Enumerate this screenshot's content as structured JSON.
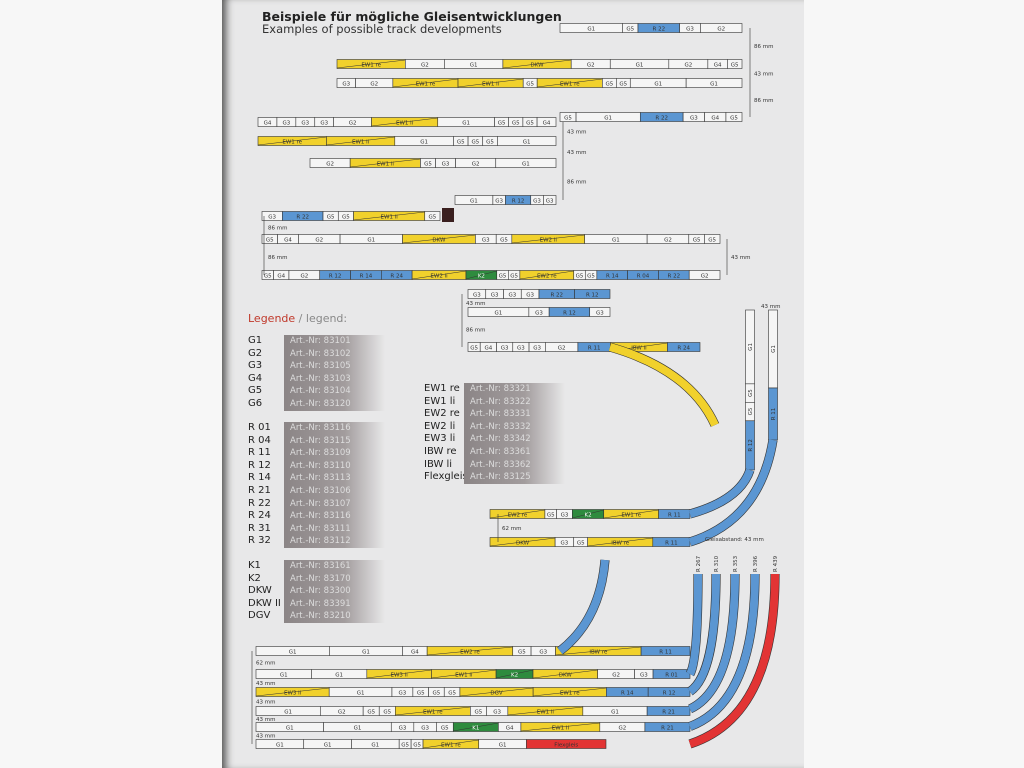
{
  "header": {
    "title": "Beispiele für mögliche Gleisentwicklungen",
    "subtitle": "Examples of possible track developments"
  },
  "legend": {
    "title": "Legende",
    "sep": " / ",
    "title_en": "legend:",
    "groups_left": [
      [
        [
          "G1",
          "Art.-Nr: 83101"
        ],
        [
          "G2",
          "Art.-Nr: 83102"
        ],
        [
          "G3",
          "Art.-Nr: 83105"
        ],
        [
          "G4",
          "Art.-Nr: 83103"
        ],
        [
          "G5",
          "Art.-Nr: 83104"
        ],
        [
          "G6",
          "Art.-Nr: 83120"
        ]
      ],
      [
        [
          "R 01",
          "Art.-Nr: 83116"
        ],
        [
          "R 04",
          "Art.-Nr: 83115"
        ],
        [
          "R 11",
          "Art.-Nr: 83109"
        ],
        [
          "R 12",
          "Art.-Nr: 83110"
        ],
        [
          "R 14",
          "Art.-Nr: 83113"
        ],
        [
          "R 21",
          "Art.-Nr: 83106"
        ],
        [
          "R 22",
          "Art.-Nr: 83107"
        ],
        [
          "R 24",
          "Art.-Nr: 83116"
        ],
        [
          "R 31",
          "Art.-Nr: 83111"
        ],
        [
          "R 32",
          "Art.-Nr: 83112"
        ]
      ],
      [
        [
          "K1",
          "Art.-Nr: 83161"
        ],
        [
          "K2",
          "Art.-Nr: 83170"
        ],
        [
          "DKW",
          "Art.-Nr: 83300"
        ],
        [
          "DKW II",
          "Art.-Nr: 83391"
        ],
        [
          "DGV",
          "Art.-Nr: 83210"
        ]
      ]
    ],
    "group_right": [
      [
        "EW1 re",
        "Art.-Nr: 83321"
      ],
      [
        "EW1 li",
        "Art.-Nr: 83322"
      ],
      [
        "EW2 re",
        "Art.-Nr: 83331"
      ],
      [
        "EW2 li",
        "Art.-Nr: 83332"
      ],
      [
        "EW3 li",
        "Art.-Nr: 83342"
      ],
      [
        "IBW re",
        "Art.-Nr: 83361"
      ],
      [
        "IBW li",
        "Art.-Nr: 83362"
      ],
      [
        "Flexgleis",
        "Art.-Nr: 83125"
      ]
    ]
  },
  "colors": {
    "straight": "#f5f5f5",
    "switch": "#f1d12c",
    "curve": "#5b96d2",
    "crossing": "#2e8b3e",
    "flex": "#e23434",
    "outline": "#333333"
  },
  "diagrams": [
    {
      "rows": [
        [
          "G1",
          "G5",
          "R 22",
          "G3",
          "G2"
        ],
        [
          "EW1 re",
          "G2",
          "G1",
          "DKW",
          "G2",
          "G1",
          "G2",
          "G4",
          "G5"
        ],
        [
          "G3",
          "G2",
          "EW1 re",
          "EW1 li",
          "G5",
          "EW1 re",
          "G5",
          "G5",
          "G1",
          "G1"
        ],
        [
          "G5",
          "G1",
          "R 22",
          "G3",
          "G4",
          "G5"
        ]
      ],
      "dims": [
        "86 mm",
        "43 mm",
        "86 mm"
      ]
    },
    {
      "rows": [
        [
          "G4",
          "G3",
          "G3",
          "G3",
          "G2",
          "EW1 li",
          "G1",
          "G5",
          "G5",
          "G5",
          "G4"
        ],
        [
          "EW1 re",
          "EW1 li",
          "G1",
          "G5",
          "G5",
          "G5",
          "G1"
        ],
        [
          "G2",
          "EW1 li",
          "G5",
          "G3",
          "G2",
          "G1"
        ],
        [
          "G1",
          "G3",
          "R 12",
          "G3",
          "G3"
        ]
      ],
      "dims": [
        "43 mm",
        "43 mm",
        "86 mm"
      ]
    },
    {
      "rows": [
        [
          "G3",
          "R 22",
          "G5",
          "G5",
          "EW1 li",
          "G5"
        ],
        [
          "G5",
          "G4",
          "G2",
          "G1",
          "DKW",
          "G3",
          "G5",
          "EW2 li",
          "G1",
          "G2",
          "G5",
          "G5"
        ],
        [
          "G5",
          "G4",
          "G2",
          "R 12",
          "R 14",
          "R 24",
          "EW2 li",
          "K2",
          "G5",
          "G5",
          "EW2 re",
          "G5",
          "G5",
          "R 14",
          "R 04",
          "R 22",
          "G2"
        ]
      ],
      "dims": [
        "86 mm",
        "43 mm",
        "86 mm"
      ]
    },
    {
      "rows": [
        [
          "G3",
          "G3",
          "G3",
          "G3",
          "R 22",
          "R 12"
        ],
        [
          "G1",
          "G3",
          "R 12",
          "G3"
        ],
        [
          "G5",
          "G4",
          "G3",
          "G3",
          "G3",
          "G2",
          "R 11",
          "IBW li",
          "R 24"
        ]
      ],
      "dims": [
        "43 mm",
        "86 mm"
      ]
    },
    {
      "rows": [
        [
          "EW2 re",
          "G5",
          "G3",
          "K2",
          "EW1 re",
          "R 11"
        ],
        [
          "DKW",
          "G3",
          "G5",
          "IBW re",
          "R 11"
        ]
      ],
      "dims": [
        "62 mm"
      ],
      "verticals": [
        [
          "G1",
          "G5",
          "G5",
          "R 12"
        ],
        [
          "G1",
          "R 11"
        ]
      ],
      "vdim": "43 mm"
    },
    {
      "rows": [
        [
          "G1",
          "G1",
          "G4",
          "EW2 re",
          "G5",
          "G3",
          "IBW re",
          "R 11"
        ],
        [
          "G1",
          "G1",
          "EW3 li",
          "EW1 li",
          "K2",
          "DKW",
          "G2",
          "G3",
          "R 01"
        ],
        [
          "EW3 li",
          "G1",
          "G3",
          "G5",
          "G5",
          "G5",
          "DGV",
          "EW1 re",
          "R 14",
          "R 12"
        ],
        [
          "G1",
          "G2",
          "G5",
          "G5",
          "EW1 re",
          "G5",
          "G3",
          "EW1 li",
          "G1",
          "R 21"
        ],
        [
          "G1",
          "G1",
          "G3",
          "G3",
          "G5",
          "K1",
          "G4",
          "EW1 li",
          "G2",
          "R 21"
        ],
        [
          "G1",
          "G1",
          "G1",
          "G5",
          "G5",
          "EW1 re",
          "G1",
          "Flexgleis"
        ]
      ],
      "dims": [
        "62 mm",
        "43 mm",
        "43 mm",
        "43 mm",
        "43 mm"
      ],
      "spacing": "Gleisabstand: 43 mm",
      "radii": [
        "R 267",
        "R 310",
        "R 353",
        "R 396",
        "R 439"
      ]
    }
  ]
}
